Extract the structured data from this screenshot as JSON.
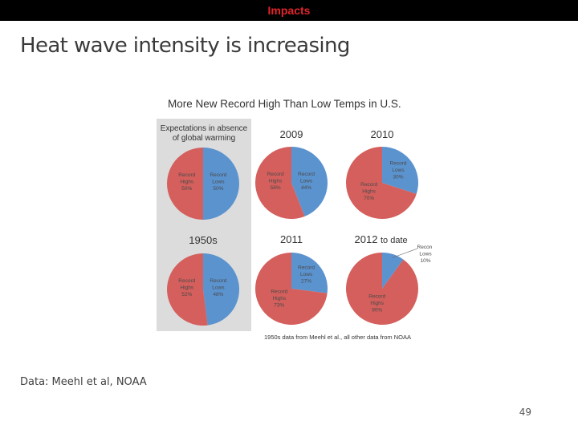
{
  "header": {
    "section": "Impacts"
  },
  "slide": {
    "title": "Heat wave intensity is increasing",
    "source": "Data: Meehl et al, NOAA",
    "page_number": "49"
  },
  "colors": {
    "highs": "#d45f5c",
    "lows": "#5b93cf",
    "panel": "#dcdcdc",
    "accent": "#e3242b"
  },
  "chart_data": {
    "type": "pie",
    "title": "More New Record High Than Low Temps in U.S.",
    "panel_caption": "Expectations in absence of global warming",
    "footnote": "1950s data from Meehl et al., all other data from NOAA",
    "charts": [
      {
        "id": "expected",
        "label": "",
        "highs": 50,
        "lows": 50,
        "high_label": [
          "Record",
          "Highs",
          "50%"
        ],
        "low_label": [
          "Record",
          "Lows",
          "50%"
        ]
      },
      {
        "id": "2009",
        "label": "2009",
        "highs": 56,
        "lows": 44,
        "high_label": [
          "Record",
          "Highs",
          "56%"
        ],
        "low_label": [
          "Record",
          "Lows",
          "44%"
        ]
      },
      {
        "id": "2010",
        "label": "2010",
        "highs": 70,
        "lows": 30,
        "high_label": [
          "Record",
          "Highs",
          "70%"
        ],
        "low_label": [
          "Record",
          "Lows",
          "30%"
        ]
      },
      {
        "id": "1950s",
        "label": "1950s",
        "highs": 52,
        "lows": 48,
        "high_label": [
          "Record",
          "Highs",
          "52%"
        ],
        "low_label": [
          "Record",
          "Lows",
          "48%"
        ]
      },
      {
        "id": "2011",
        "label": "2011",
        "highs": 73,
        "lows": 27,
        "high_label": [
          "Record",
          "Highs",
          "73%"
        ],
        "low_label": [
          "Record",
          "Lows",
          "27%"
        ]
      },
      {
        "id": "2012",
        "label": "2012",
        "label_suffix": "to date",
        "highs": 90,
        "lows": 10,
        "high_label": [
          "Record",
          "Highs",
          "90%"
        ],
        "low_label": [
          "Record",
          "Lows",
          "10%"
        ]
      }
    ]
  }
}
